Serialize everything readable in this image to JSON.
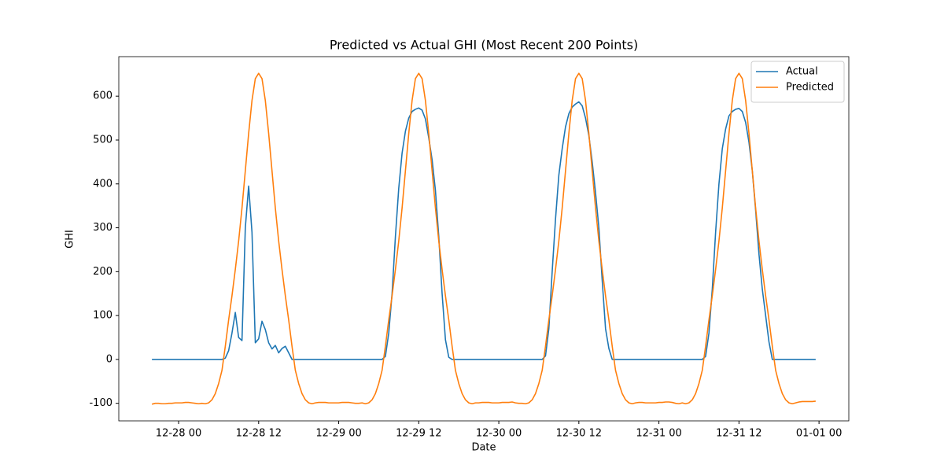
{
  "chart_data": {
    "type": "line",
    "title": "Predicted vs Actual GHI (Most Recent 200 Points)",
    "x_label": "Date",
    "y_label": "GHI",
    "legend": "upper right",
    "xlim": [
      "12-27 15:02",
      "01-01 04:28"
    ],
    "xticks": [
      "12-28 00",
      "12-28 12",
      "12-29 00",
      "12-29 12",
      "12-30 00",
      "12-30 12",
      "12-31 00",
      "12-31 12",
      "01-01 00"
    ],
    "ylim": [
      -140,
      690
    ],
    "yticks": [
      -100,
      0,
      100,
      200,
      300,
      400,
      500,
      600
    ],
    "x": [
      "12-27 20:00",
      "12-27 20:30",
      "12-27 21:00",
      "12-27 21:30",
      "12-27 22:00",
      "12-27 22:30",
      "12-27 23:00",
      "12-27 23:30",
      "12-28 00:00",
      "12-28 00:30",
      "12-28 01:00",
      "12-28 01:30",
      "12-28 02:00",
      "12-28 02:30",
      "12-28 03:00",
      "12-28 03:30",
      "12-28 04:00",
      "12-28 04:30",
      "12-28 05:00",
      "12-28 05:30",
      "12-28 06:00",
      "12-28 06:30",
      "12-28 07:00",
      "12-28 07:30",
      "12-28 08:00",
      "12-28 08:30",
      "12-28 09:00",
      "12-28 09:30",
      "12-28 10:00",
      "12-28 10:30",
      "12-28 11:00",
      "12-28 11:30",
      "12-28 12:00",
      "12-28 12:30",
      "12-28 13:00",
      "12-28 13:30",
      "12-28 14:00",
      "12-28 14:30",
      "12-28 15:00",
      "12-28 15:30",
      "12-28 16:00",
      "12-28 16:30",
      "12-28 17:00",
      "12-28 17:30",
      "12-28 18:00",
      "12-28 18:30",
      "12-28 19:00",
      "12-28 19:30",
      "12-28 20:00",
      "12-28 20:30",
      "12-28 21:00",
      "12-28 21:30",
      "12-28 22:00",
      "12-28 22:30",
      "12-28 23:00",
      "12-28 23:30",
      "12-29 00:00",
      "12-29 00:30",
      "12-29 01:00",
      "12-29 01:30",
      "12-29 02:00",
      "12-29 02:30",
      "12-29 03:00",
      "12-29 03:30",
      "12-29 04:00",
      "12-29 04:30",
      "12-29 05:00",
      "12-29 05:30",
      "12-29 06:00",
      "12-29 06:30",
      "12-29 07:00",
      "12-29 07:30",
      "12-29 08:00",
      "12-29 08:30",
      "12-29 09:00",
      "12-29 09:30",
      "12-29 10:00",
      "12-29 10:30",
      "12-29 11:00",
      "12-29 11:30",
      "12-29 12:00",
      "12-29 12:30",
      "12-29 13:00",
      "12-29 13:30",
      "12-29 14:00",
      "12-29 14:30",
      "12-29 15:00",
      "12-29 15:30",
      "12-29 16:00",
      "12-29 16:30",
      "12-29 17:00",
      "12-29 17:30",
      "12-29 18:00",
      "12-29 18:30",
      "12-29 19:00",
      "12-29 19:30",
      "12-29 20:00",
      "12-29 20:30",
      "12-29 21:00",
      "12-29 21:30",
      "12-29 22:00",
      "12-29 22:30",
      "12-29 23:00",
      "12-29 23:30",
      "12-30 00:00",
      "12-30 00:30",
      "12-30 01:00",
      "12-30 01:30",
      "12-30 02:00",
      "12-30 02:30",
      "12-30 03:00",
      "12-30 03:30",
      "12-30 04:00",
      "12-30 04:30",
      "12-30 05:00",
      "12-30 05:30",
      "12-30 06:00",
      "12-30 06:30",
      "12-30 07:00",
      "12-30 07:30",
      "12-30 08:00",
      "12-30 08:30",
      "12-30 09:00",
      "12-30 09:30",
      "12-30 10:00",
      "12-30 10:30",
      "12-30 11:00",
      "12-30 11:30",
      "12-30 12:00",
      "12-30 12:30",
      "12-30 13:00",
      "12-30 13:30",
      "12-30 14:00",
      "12-30 14:30",
      "12-30 15:00",
      "12-30 15:30",
      "12-30 16:00",
      "12-30 16:30",
      "12-30 17:00",
      "12-30 17:30",
      "12-30 18:00",
      "12-30 18:30",
      "12-30 19:00",
      "12-30 19:30",
      "12-30 20:00",
      "12-30 20:30",
      "12-30 21:00",
      "12-30 21:30",
      "12-30 22:00",
      "12-30 22:30",
      "12-30 23:00",
      "12-30 23:30",
      "12-31 00:00",
      "12-31 00:30",
      "12-31 01:00",
      "12-31 01:30",
      "12-31 02:00",
      "12-31 02:30",
      "12-31 03:00",
      "12-31 03:30",
      "12-31 04:00",
      "12-31 04:30",
      "12-31 05:00",
      "12-31 05:30",
      "12-31 06:00",
      "12-31 06:30",
      "12-31 07:00",
      "12-31 07:30",
      "12-31 08:00",
      "12-31 08:30",
      "12-31 09:00",
      "12-31 09:30",
      "12-31 10:00",
      "12-31 10:30",
      "12-31 11:00",
      "12-31 11:30",
      "12-31 12:00",
      "12-31 12:30",
      "12-31 13:00",
      "12-31 13:30",
      "12-31 14:00",
      "12-31 14:30",
      "12-31 15:00",
      "12-31 15:30",
      "12-31 16:00",
      "12-31 16:30",
      "12-31 17:00",
      "12-31 17:30",
      "12-31 18:00",
      "12-31 18:30",
      "12-31 19:00",
      "12-31 19:30",
      "12-31 20:00",
      "12-31 20:30",
      "12-31 21:00",
      "12-31 21:30",
      "12-31 22:00",
      "12-31 22:30",
      "12-31 23:00",
      "12-31 23:30"
    ],
    "series": [
      {
        "name": "Actual",
        "color": "#1f77b4",
        "values": [
          0,
          0,
          0,
          0,
          0,
          0,
          0,
          0,
          0,
          0,
          0,
          0,
          0,
          0,
          0,
          0,
          0,
          0,
          0,
          0,
          0,
          0,
          3,
          20,
          60,
          107,
          50,
          43,
          300,
          395,
          290,
          38,
          47,
          87,
          68,
          38,
          24,
          32,
          15,
          25,
          30,
          15,
          0,
          0,
          0,
          0,
          0,
          0,
          0,
          0,
          0,
          0,
          0,
          0,
          0,
          0,
          0,
          0,
          0,
          0,
          0,
          0,
          0,
          0,
          0,
          0,
          0,
          0,
          0,
          0,
          7,
          60,
          150,
          280,
          390,
          470,
          520,
          550,
          565,
          570,
          573,
          568,
          548,
          505,
          455,
          385,
          280,
          150,
          45,
          5,
          0,
          0,
          0,
          0,
          0,
          0,
          0,
          0,
          0,
          0,
          0,
          0,
          0,
          0,
          0,
          0,
          0,
          0,
          0,
          0,
          0,
          0,
          0,
          0,
          0,
          0,
          0,
          0,
          8,
          70,
          200,
          320,
          420,
          480,
          530,
          560,
          575,
          582,
          587,
          578,
          550,
          510,
          450,
          380,
          300,
          180,
          70,
          25,
          0,
          0,
          0,
          0,
          0,
          0,
          0,
          0,
          0,
          0,
          0,
          0,
          0,
          0,
          0,
          0,
          0,
          0,
          0,
          0,
          0,
          0,
          0,
          0,
          0,
          0,
          0,
          0,
          7,
          60,
          160,
          290,
          400,
          480,
          525,
          555,
          565,
          570,
          572,
          565,
          540,
          495,
          430,
          340,
          240,
          160,
          100,
          40,
          0,
          0,
          0,
          0,
          0,
          0,
          0,
          0,
          0,
          0,
          0,
          0,
          0,
          0
        ]
      },
      {
        "name": "Predicted",
        "color": "#ff7f0e",
        "values": [
          -102,
          -100,
          -100,
          -101,
          -101,
          -100,
          -100,
          -99,
          -99,
          -99,
          -98,
          -98,
          -99,
          -100,
          -101,
          -100,
          -101,
          -99,
          -92,
          -78,
          -55,
          -25,
          30,
          90,
          145,
          205,
          270,
          345,
          430,
          515,
          590,
          640,
          652,
          640,
          590,
          515,
          430,
          345,
          270,
          205,
          145,
          90,
          30,
          -25,
          -55,
          -78,
          -92,
          -99,
          -101,
          -99,
          -98,
          -98,
          -98,
          -99,
          -99,
          -99,
          -99,
          -98,
          -98,
          -98,
          -99,
          -100,
          -100,
          -99,
          -101,
          -99,
          -92,
          -78,
          -55,
          -25,
          30,
          90,
          145,
          205,
          270,
          345,
          430,
          515,
          590,
          640,
          652,
          640,
          590,
          515,
          430,
          345,
          270,
          205,
          145,
          90,
          30,
          -25,
          -55,
          -78,
          -92,
          -99,
          -101,
          -99,
          -99,
          -98,
          -98,
          -98,
          -99,
          -99,
          -99,
          -98,
          -98,
          -98,
          -97,
          -99,
          -100,
          -100,
          -101,
          -99,
          -92,
          -78,
          -55,
          -25,
          30,
          90,
          145,
          205,
          270,
          345,
          430,
          515,
          590,
          640,
          652,
          640,
          590,
          515,
          430,
          345,
          270,
          205,
          145,
          90,
          30,
          -25,
          -55,
          -78,
          -92,
          -99,
          -101,
          -99,
          -98,
          -98,
          -99,
          -99,
          -99,
          -99,
          -98,
          -98,
          -97,
          -97,
          -98,
          -100,
          -101,
          -99,
          -101,
          -99,
          -92,
          -78,
          -55,
          -25,
          30,
          90,
          145,
          205,
          270,
          345,
          430,
          515,
          590,
          640,
          652,
          640,
          590,
          515,
          430,
          345,
          270,
          205,
          145,
          90,
          30,
          -25,
          -55,
          -78,
          -92,
          -99,
          -101,
          -99,
          -97,
          -96,
          -96,
          -96,
          -96,
          -95
        ]
      }
    ]
  }
}
